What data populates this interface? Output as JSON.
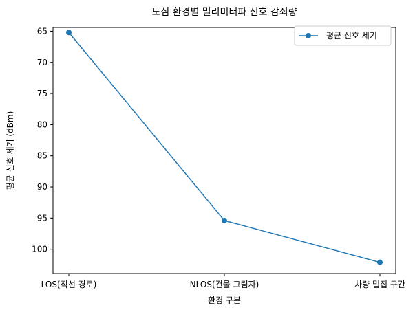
{
  "chart_data": {
    "type": "line",
    "title": "도심 환경별 밀리미터파 신호 감쇠량",
    "xlabel": "환경 구분",
    "ylabel": "평균 신호 세기 (dBm)",
    "categories": [
      "LOS(직선 경로)",
      "NLOS(건물 그림자)",
      "차량 밀집 구간"
    ],
    "series": [
      {
        "name": "평균 신호 세기",
        "values": [
          -65.2,
          -95.4,
          -102.1
        ],
        "color": "#1f77b4"
      }
    ],
    "y_ticks": [
      -65,
      -70,
      -75,
      -80,
      -85,
      -90,
      -95,
      -100
    ],
    "y_tick_labels": [
      "65",
      "70",
      "75",
      "80",
      "85",
      "90",
      "95",
      "100"
    ],
    "ylim": [
      -64.4,
      -103.9
    ],
    "y_axis_inverted": true,
    "legend_position": "top-right",
    "grid": false
  }
}
